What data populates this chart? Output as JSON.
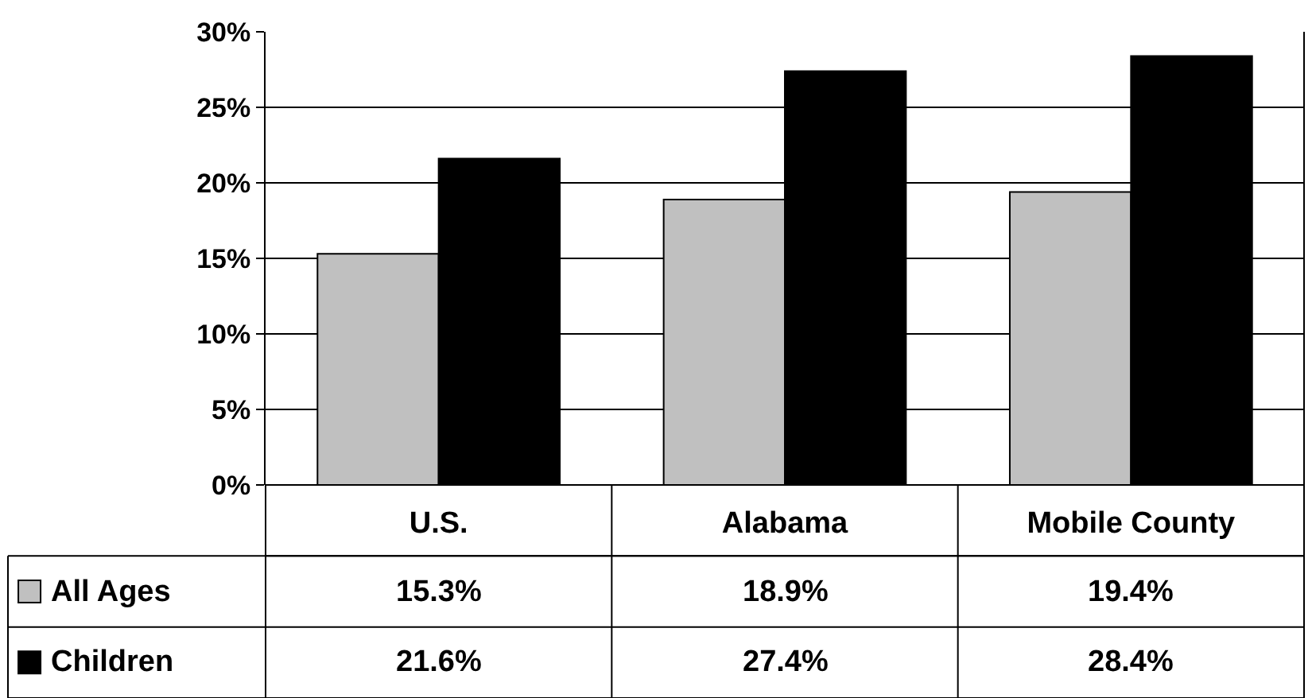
{
  "chart_data": {
    "type": "bar",
    "categories": [
      "U.S.",
      "Alabama",
      "Mobile County"
    ],
    "series": [
      {
        "name": "All Ages",
        "color": "#c0c0c0",
        "values": [
          15.3,
          18.9,
          19.4
        ],
        "value_labels": [
          "15.3%",
          "18.9%",
          "19.4%"
        ]
      },
      {
        "name": "Children",
        "color": "#000000",
        "values": [
          21.6,
          27.4,
          28.4
        ],
        "value_labels": [
          "21.6%",
          "27.4%",
          "28.4%"
        ]
      }
    ],
    "ylim": [
      0,
      30
    ],
    "yticks": [
      {
        "value": 0,
        "label": "0%"
      },
      {
        "value": 5,
        "label": "5%"
      },
      {
        "value": 10,
        "label": "10%"
      },
      {
        "value": 15,
        "label": "15%"
      },
      {
        "value": 20,
        "label": "20%"
      },
      {
        "value": 25,
        "label": "25%"
      },
      {
        "value": 30,
        "label": "30%"
      }
    ],
    "grid": "y",
    "legend": "bottom left"
  }
}
